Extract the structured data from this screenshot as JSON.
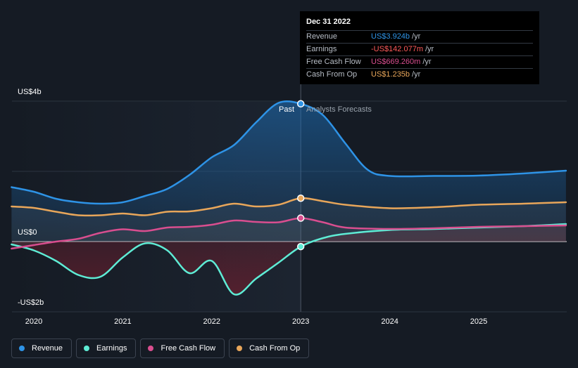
{
  "chart_data": {
    "type": "line",
    "y_ticks": [
      "US$4b",
      "US$0",
      "-US$2b"
    ],
    "ylim": [
      -2,
      4
    ],
    "x_ticks": [
      "2020",
      "2021",
      "2022",
      "2023",
      "2024",
      "2025"
    ],
    "xlim": [
      2019.75,
      2025.98
    ],
    "divider_year": 2023.0,
    "past_label": "Past",
    "forecast_label": "Analysts Forecasts",
    "series": [
      {
        "name": "Revenue",
        "color": "#2e93e6",
        "points": [
          [
            2019.75,
            1.55
          ],
          [
            2020.0,
            1.42
          ],
          [
            2020.25,
            1.22
          ],
          [
            2020.5,
            1.12
          ],
          [
            2020.75,
            1.08
          ],
          [
            2021.0,
            1.12
          ],
          [
            2021.25,
            1.3
          ],
          [
            2021.5,
            1.5
          ],
          [
            2021.75,
            1.9
          ],
          [
            2022.0,
            2.4
          ],
          [
            2022.25,
            2.75
          ],
          [
            2022.5,
            3.4
          ],
          [
            2022.75,
            3.95
          ],
          [
            2023.0,
            3.924
          ],
          [
            2023.25,
            3.6
          ],
          [
            2023.5,
            2.8
          ],
          [
            2023.75,
            2.05
          ],
          [
            2024.0,
            1.87
          ],
          [
            2024.5,
            1.87
          ],
          [
            2025.0,
            1.88
          ],
          [
            2025.5,
            1.94
          ],
          [
            2025.98,
            2.02
          ]
        ]
      },
      {
        "name": "Earnings",
        "color": "#5eecd5",
        "points": [
          [
            2019.75,
            -0.08
          ],
          [
            2020.0,
            -0.25
          ],
          [
            2020.25,
            -0.55
          ],
          [
            2020.5,
            -0.95
          ],
          [
            2020.75,
            -1.0
          ],
          [
            2021.0,
            -0.45
          ],
          [
            2021.25,
            -0.05
          ],
          [
            2021.5,
            -0.25
          ],
          [
            2021.75,
            -0.9
          ],
          [
            2022.0,
            -0.55
          ],
          [
            2022.25,
            -1.5
          ],
          [
            2022.5,
            -1.05
          ],
          [
            2022.75,
            -0.6
          ],
          [
            2023.0,
            -0.142
          ],
          [
            2023.25,
            0.1
          ],
          [
            2023.5,
            0.22
          ],
          [
            2024.0,
            0.33
          ],
          [
            2024.5,
            0.36
          ],
          [
            2025.0,
            0.4
          ],
          [
            2025.5,
            0.44
          ],
          [
            2025.98,
            0.5
          ]
        ]
      },
      {
        "name": "Free Cash Flow",
        "color": "#d94e8f",
        "points": [
          [
            2019.75,
            -0.2
          ],
          [
            2020.0,
            -0.1
          ],
          [
            2020.25,
            0.0
          ],
          [
            2020.5,
            0.08
          ],
          [
            2020.75,
            0.25
          ],
          [
            2021.0,
            0.35
          ],
          [
            2021.25,
            0.3
          ],
          [
            2021.5,
            0.4
          ],
          [
            2021.75,
            0.42
          ],
          [
            2022.0,
            0.48
          ],
          [
            2022.25,
            0.6
          ],
          [
            2022.5,
            0.56
          ],
          [
            2022.75,
            0.55
          ],
          [
            2023.0,
            0.669
          ],
          [
            2023.25,
            0.55
          ],
          [
            2023.5,
            0.4
          ],
          [
            2024.0,
            0.36
          ],
          [
            2024.5,
            0.38
          ],
          [
            2025.0,
            0.42
          ],
          [
            2025.5,
            0.44
          ],
          [
            2025.98,
            0.46
          ]
        ]
      },
      {
        "name": "Cash From Op",
        "color": "#e8a65a",
        "points": [
          [
            2019.75,
            1.0
          ],
          [
            2020.0,
            0.96
          ],
          [
            2020.25,
            0.85
          ],
          [
            2020.5,
            0.75
          ],
          [
            2020.75,
            0.75
          ],
          [
            2021.0,
            0.8
          ],
          [
            2021.25,
            0.75
          ],
          [
            2021.5,
            0.85
          ],
          [
            2021.75,
            0.86
          ],
          [
            2022.0,
            0.95
          ],
          [
            2022.25,
            1.08
          ],
          [
            2022.5,
            1.0
          ],
          [
            2022.75,
            1.05
          ],
          [
            2023.0,
            1.235
          ],
          [
            2023.25,
            1.15
          ],
          [
            2023.5,
            1.05
          ],
          [
            2024.0,
            0.95
          ],
          [
            2024.5,
            0.98
          ],
          [
            2025.0,
            1.05
          ],
          [
            2025.5,
            1.08
          ],
          [
            2025.98,
            1.12
          ]
        ]
      }
    ]
  },
  "tooltip": {
    "date": "Dec 31 2022",
    "rows": [
      {
        "name": "Revenue",
        "value": "US$3.924b",
        "unit": "/yr",
        "color": "#2e93e6"
      },
      {
        "name": "Earnings",
        "value": "-US$142.077m",
        "unit": "/yr",
        "color": "#ff5a5a"
      },
      {
        "name": "Free Cash Flow",
        "value": "US$669.260m",
        "unit": "/yr",
        "color": "#d94e8f"
      },
      {
        "name": "Cash From Op",
        "value": "US$1.235b",
        "unit": "/yr",
        "color": "#e8a65a"
      }
    ]
  },
  "legend": [
    {
      "label": "Revenue",
      "color": "#2e93e6"
    },
    {
      "label": "Earnings",
      "color": "#5eecd5"
    },
    {
      "label": "Free Cash Flow",
      "color": "#d94e8f"
    },
    {
      "label": "Cash From Op",
      "color": "#e8a65a"
    }
  ]
}
